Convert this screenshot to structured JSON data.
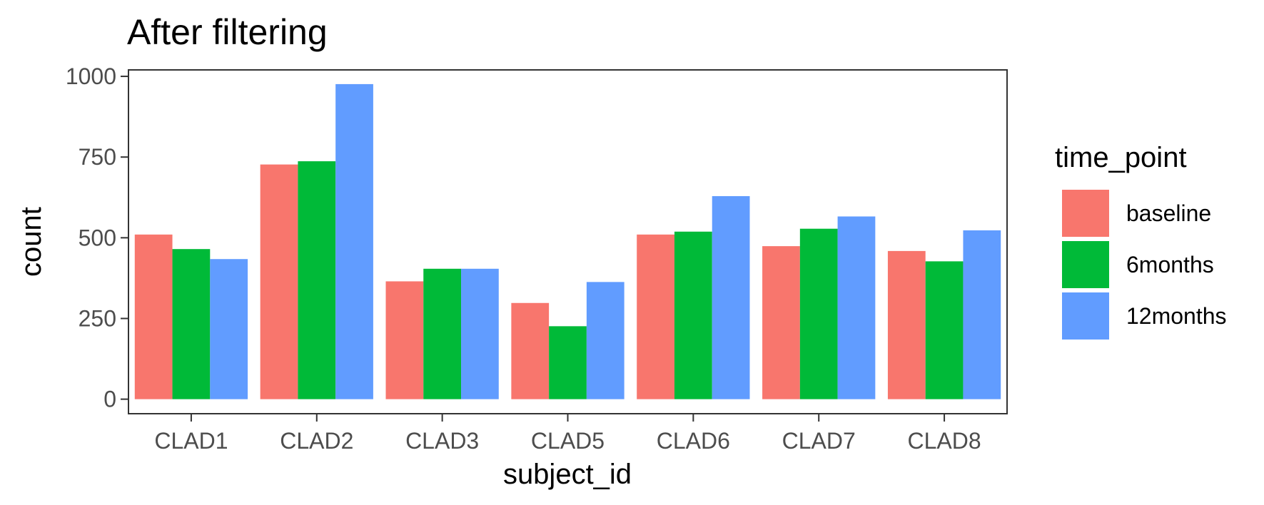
{
  "chart_data": {
    "type": "bar",
    "title": "After filtering",
    "xlabel": "subject_id",
    "ylabel": "count",
    "categories": [
      "CLAD1",
      "CLAD2",
      "CLAD3",
      "CLAD5",
      "CLAD6",
      "CLAD7",
      "CLAD8"
    ],
    "series": [
      {
        "name": "baseline",
        "color": "#F8766D",
        "values": [
          510,
          727,
          365,
          298,
          510,
          474,
          459
        ]
      },
      {
        "name": "6months",
        "color": "#00BA38",
        "values": [
          465,
          737,
          404,
          226,
          519,
          528,
          427
        ]
      },
      {
        "name": "12months",
        "color": "#619CFF",
        "values": [
          434,
          976,
          404,
          363,
          629,
          566,
          523
        ]
      }
    ],
    "ylim": [
      -45,
      1020
    ],
    "yticks": [
      0,
      250,
      500,
      750,
      1000
    ],
    "ytick_labels": [
      "0",
      "250",
      "500",
      "750",
      "1000"
    ],
    "legend": {
      "title": "time_point",
      "placement": "right"
    },
    "grid": false
  }
}
